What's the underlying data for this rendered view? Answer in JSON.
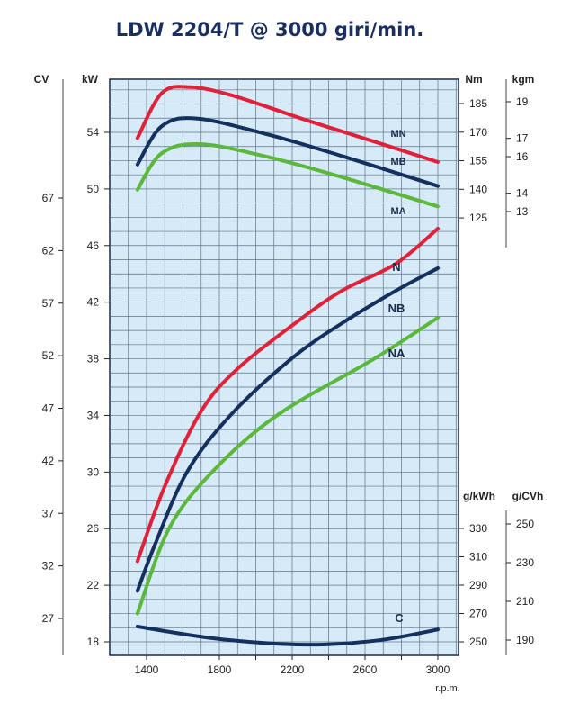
{
  "chart_data": {
    "type": "line",
    "title": "LDW 2204/T @ 3000 giri/min.",
    "xlabel": "r.p.m.",
    "xlim": [
      1200,
      3110
    ],
    "x_ticks": [
      1400,
      1800,
      2200,
      2600,
      3000
    ],
    "grid": true,
    "background_color": "#d6eaf8",
    "axes": {
      "kW": {
        "label": "kW",
        "ticks": [
          18,
          22,
          26,
          30,
          34,
          38,
          42,
          46,
          50,
          54
        ]
      },
      "CV": {
        "label": "CV",
        "ticks": [
          27,
          32,
          37,
          42,
          47,
          52,
          57,
          62,
          67
        ]
      },
      "Nm": {
        "label": "Nm",
        "ticks": [
          125,
          140,
          155,
          170,
          185
        ]
      },
      "kgm": {
        "label": "kgm",
        "ticks": [
          13,
          14,
          16,
          17,
          19
        ]
      },
      "gkWh": {
        "label": "g/kWh",
        "ticks": [
          250,
          270,
          290,
          310,
          330
        ]
      },
      "gCVh": {
        "label": "g/CVh",
        "ticks": [
          190,
          210,
          230,
          250
        ]
      }
    },
    "series": [
      {
        "name": "MN",
        "axis": "Nm",
        "color": "#e0213a",
        "x": [
          1350,
          1484,
          1642,
          1879,
          2274,
          2669,
          3000
        ],
        "y": [
          166.9,
          190.5,
          193.6,
          189,
          176.4,
          164.5,
          154.3
        ]
      },
      {
        "name": "MB",
        "axis": "Nm",
        "color": "#14305e",
        "x": [
          1350,
          1484,
          1681,
          2077,
          2472,
          3000
        ],
        "y": [
          153,
          173.2,
          177.1,
          168.5,
          157.5,
          141.7
        ]
      },
      {
        "name": "MA",
        "axis": "Nm",
        "color": "#5cb83a",
        "x": [
          1350,
          1484,
          1701,
          2077,
          2472,
          3000
        ],
        "y": [
          139.8,
          159,
          163.7,
          156.7,
          146.4,
          131
        ]
      },
      {
        "name": "N",
        "axis": "kW",
        "color": "#e0213a",
        "x": [
          1350,
          1500,
          1700,
          1900,
          2215,
          2472,
          2768,
          3000
        ],
        "y": [
          23.7,
          29,
          34.3,
          37.3,
          40.5,
          42.8,
          44.7,
          47.2
        ]
      },
      {
        "name": "NB",
        "axis": "kW",
        "color": "#14305e",
        "x": [
          1350,
          1450,
          1622,
          1860,
          2195,
          2472,
          2768,
          3000
        ],
        "y": [
          21.6,
          25,
          30,
          34,
          38,
          40.5,
          42.8,
          44.4
        ]
      },
      {
        "name": "NA",
        "axis": "kW",
        "color": "#5cb83a",
        "x": [
          1350,
          1523,
          1760,
          2116,
          2650,
          3000
        ],
        "y": [
          20,
          26,
          30,
          34,
          38,
          40.9
        ]
      },
      {
        "name": "C",
        "axis": "gkWh",
        "color": "#14305e",
        "x": [
          1350,
          1800,
          2274,
          2669,
          3000
        ],
        "y": [
          260.8,
          252,
          248,
          251,
          258.7
        ]
      }
    ]
  }
}
